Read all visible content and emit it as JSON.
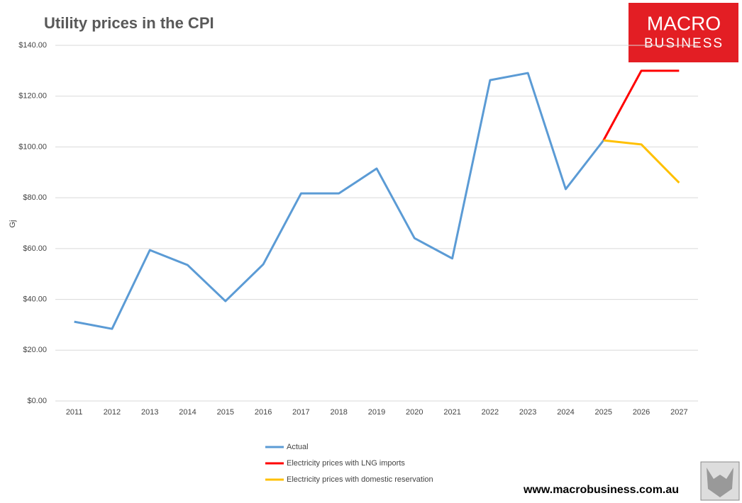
{
  "chart_data": {
    "type": "line",
    "title": "Utility prices in the CPI",
    "y_label": "Gj",
    "logo": [
      "MACRO",
      "BUSINESS"
    ],
    "website": "www.macrobusiness.com.au",
    "categories": [
      "2011",
      "2012",
      "2013",
      "2014",
      "2015",
      "2016",
      "2017",
      "2018",
      "2019",
      "2020",
      "2021",
      "2022",
      "2023",
      "2024",
      "2025",
      "2026",
      "2027"
    ],
    "series": [
      {
        "name": "Actual",
        "color": "#5b9bd5",
        "values": [
          31.2,
          28.4,
          59.4,
          53.5,
          39.3,
          53.8,
          81.7,
          81.7,
          91.5,
          64.1,
          56.1,
          126.3,
          129.1,
          83.4,
          102.6,
          null,
          null
        ]
      },
      {
        "name": "Electricity prices with LNG imports",
        "color": "#ff0000",
        "values": [
          null,
          null,
          null,
          null,
          null,
          null,
          null,
          null,
          null,
          null,
          null,
          null,
          null,
          null,
          102.6,
          130,
          130
        ]
      },
      {
        "name": "Electricity prices with domestic reservation",
        "color": "#ffc000",
        "values": [
          null,
          null,
          null,
          null,
          null,
          null,
          null,
          null,
          null,
          null,
          null,
          null,
          null,
          null,
          102.6,
          101,
          85.9
        ]
      }
    ],
    "ylim": [
      0,
      140
    ],
    "yticks": [
      {
        "value": 0,
        "label": "$0.00"
      },
      {
        "value": 20,
        "label": "$20.00"
      },
      {
        "value": 40,
        "label": "$40.00"
      },
      {
        "value": 60,
        "label": "$60.00"
      },
      {
        "value": 80,
        "label": "$80.00"
      },
      {
        "value": 100,
        "label": "$100.00"
      },
      {
        "value": 120,
        "label": "$120.00"
      },
      {
        "value": 140,
        "label": "$140.00"
      }
    ],
    "grid": true,
    "legend": "bottom"
  }
}
